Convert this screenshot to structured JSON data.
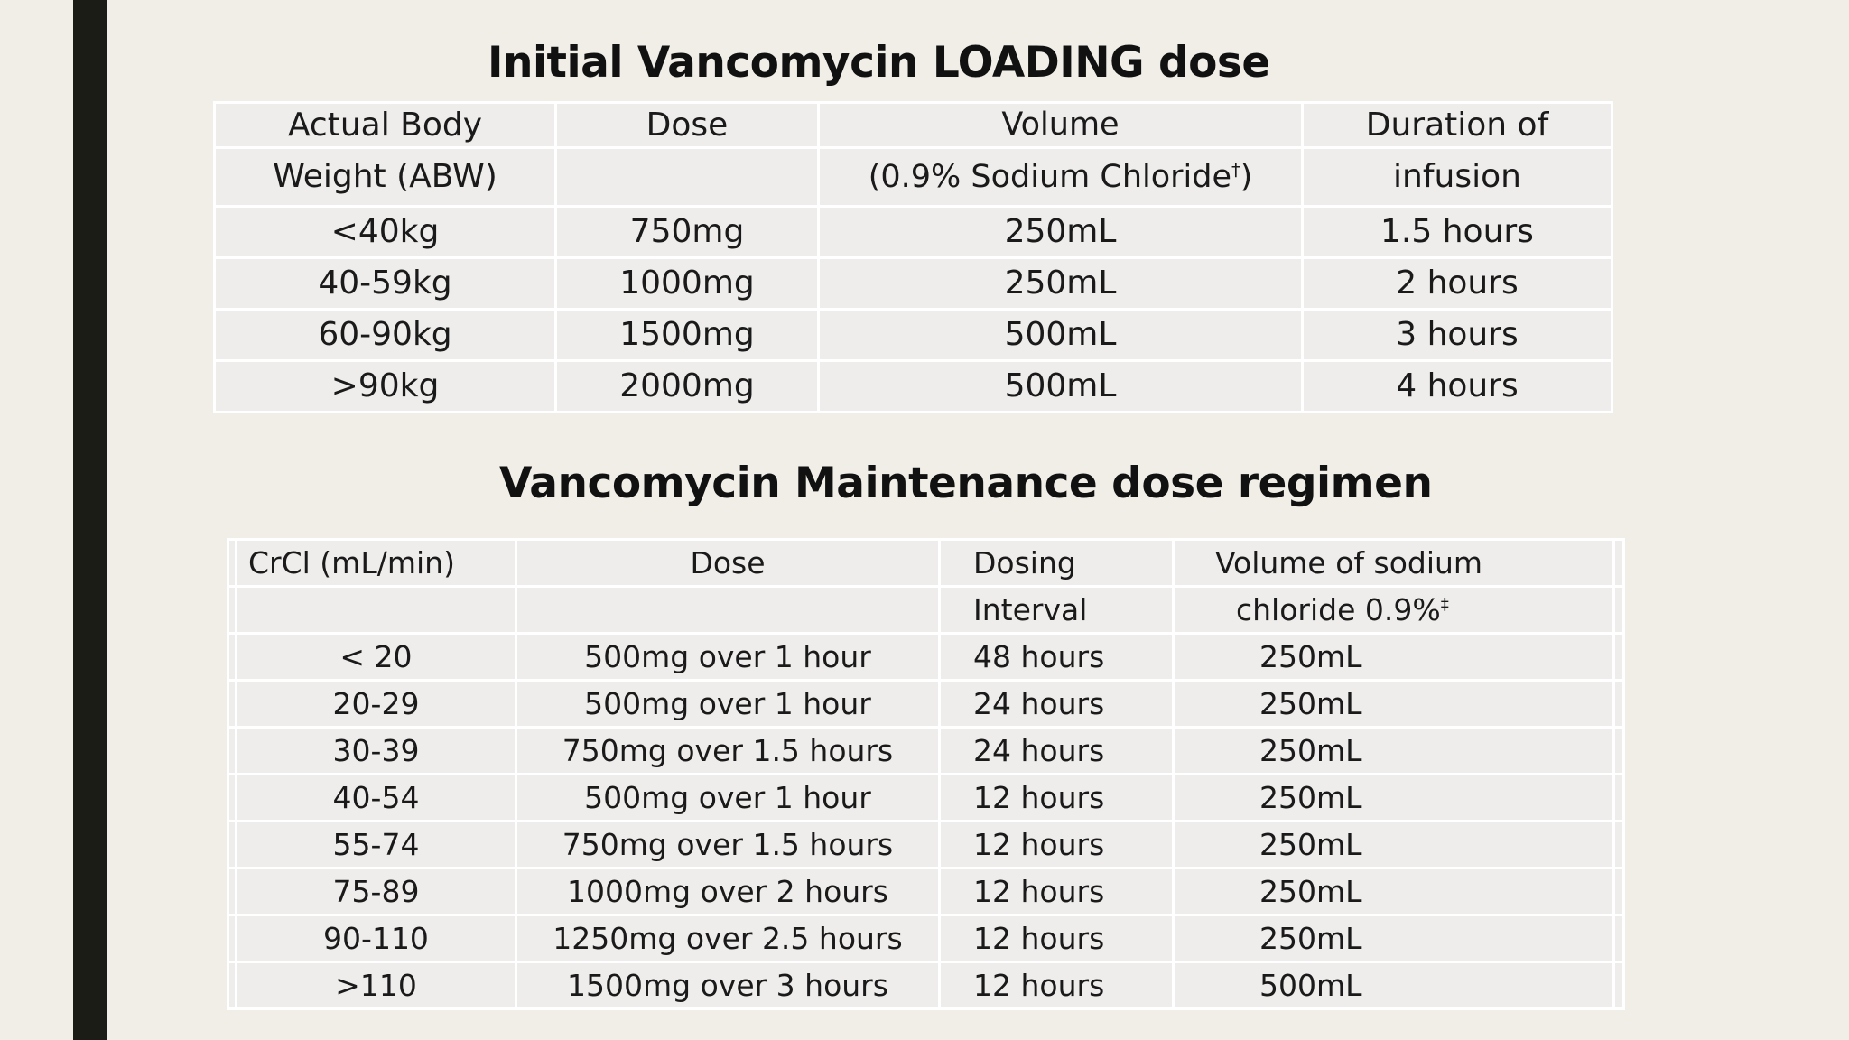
{
  "loading": {
    "title": "Initial Vancomycin LOADING dose",
    "headers": {
      "abw_line1": "Actual Body",
      "abw_line2": "Weight (ABW)",
      "dose": "Dose",
      "volume_line1": "Volume",
      "volume_line2": "(0.9% Sodium Chloride",
      "volume_mark": "†",
      "volume_close": ")",
      "duration_line1": "Duration of",
      "duration_line2": "infusion"
    },
    "rows": [
      {
        "abw": "<40kg",
        "dose": "750mg",
        "volume": "250mL",
        "duration": "1.5 hours"
      },
      {
        "abw": "40-59kg",
        "dose": "1000mg",
        "volume": "250mL",
        "duration": "2 hours"
      },
      {
        "abw": "60-90kg",
        "dose": "1500mg",
        "volume": "500mL",
        "duration": "3 hours"
      },
      {
        "abw": ">90kg",
        "dose": "2000mg",
        "volume": "500mL",
        "duration": "4 hours"
      }
    ]
  },
  "maintenance": {
    "title": "Vancomycin Maintenance dose regimen",
    "headers": {
      "crcl": "CrCl (mL/min)",
      "dose": "Dose",
      "interval_line1": "Dosing",
      "interval_line2": "Interval",
      "volume_line1": "Volume of sodium",
      "volume_line2": "chloride 0.9%",
      "volume_mark": "‡"
    },
    "rows": [
      {
        "crcl": "< 20",
        "dose": "500mg over 1 hour",
        "interval": "48 hours",
        "volume": "250mL"
      },
      {
        "crcl": "20-29",
        "dose": "500mg over 1 hour",
        "interval": "24 hours",
        "volume": "250mL"
      },
      {
        "crcl": "30-39",
        "dose": "750mg over 1.5 hours",
        "interval": "24 hours",
        "volume": "250mL"
      },
      {
        "crcl": "40-54",
        "dose": "500mg over 1 hour",
        "interval": "12 hours",
        "volume": "250mL"
      },
      {
        "crcl": "55-74",
        "dose": "750mg over 1.5 hours",
        "interval": "12 hours",
        "volume": "250mL"
      },
      {
        "crcl": "75-89",
        "dose": "1000mg over 2 hours",
        "interval": "12 hours",
        "volume": "250mL"
      },
      {
        "crcl": "90-110",
        "dose": "1250mg over 2.5 hours",
        "interval": "12 hours",
        "volume": "250mL"
      },
      {
        "crcl": ">110",
        "dose": "1500mg over 3 hours",
        "interval": "12 hours",
        "volume": "500mL"
      }
    ]
  }
}
